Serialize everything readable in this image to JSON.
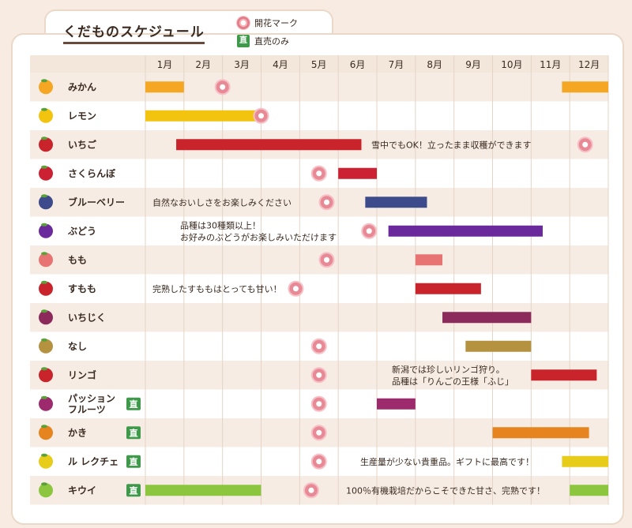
{
  "header": {
    "title": "くだものスケジュール"
  },
  "legend": {
    "flower_label": "開花マーク",
    "direct_label": "直売のみ",
    "direct_badge": "直"
  },
  "chart_data": {
    "type": "gantt",
    "months": [
      "1月",
      "2月",
      "3月",
      "4月",
      "5月",
      "6月",
      "7月",
      "8月",
      "9月",
      "10月",
      "11月",
      "12月"
    ],
    "rows": [
      {
        "name": "みかん",
        "color": "#f5a623",
        "bars": [
          [
            1,
            2
          ],
          [
            11.8,
            13
          ]
        ],
        "bloom": 3,
        "direct": false,
        "note": []
      },
      {
        "name": "レモン",
        "color": "#f2c40f",
        "bars": [
          [
            1,
            4
          ]
        ],
        "bloom": 4,
        "direct": false,
        "note": []
      },
      {
        "name": "いちご",
        "color": "#c9232b",
        "bars": [
          [
            1.8,
            6.6
          ]
        ],
        "bloom": 12.4,
        "direct": false,
        "note": [
          "雪中でもOK！立ったまま収穫ができます"
        ]
      },
      {
        "name": "さくらんぼ",
        "color": "#cc2033",
        "bars": [
          [
            6,
            7
          ]
        ],
        "bloom": 5.5,
        "direct": false,
        "note": []
      },
      {
        "name": "ブルーベリー",
        "color": "#3d4a8c",
        "bars": [
          [
            6.7,
            8.3
          ]
        ],
        "bloom": 5.7,
        "direct": false,
        "note": [
          "自然なおいしさをお楽しみください"
        ]
      },
      {
        "name": "ぶどう",
        "color": "#6a2a9c",
        "bars": [
          [
            7.3,
            11.3
          ]
        ],
        "bloom": 6.8,
        "direct": false,
        "note": [
          "品種は30種類以上！",
          "お好みのぶどうがお楽しみいただけます"
        ]
      },
      {
        "name": "もも",
        "color": "#e87373",
        "bars": [
          [
            8,
            8.7
          ]
        ],
        "bloom": 5.7,
        "direct": false,
        "note": []
      },
      {
        "name": "すもも",
        "color": "#c9232b",
        "bars": [
          [
            8,
            9.7
          ]
        ],
        "bloom": 4.9,
        "direct": false,
        "note": [
          "完熟したすももはとっても甘い！"
        ]
      },
      {
        "name": "いちじく",
        "color": "#8c2a5c",
        "bars": [
          [
            8.7,
            11
          ]
        ],
        "bloom": null,
        "direct": false,
        "note": []
      },
      {
        "name": "なし",
        "color": "#b59240",
        "bars": [
          [
            9.3,
            11
          ]
        ],
        "bloom": 5.5,
        "direct": false,
        "note": []
      },
      {
        "name": "リンゴ",
        "color": "#c9232b",
        "bars": [
          [
            11,
            12.7
          ]
        ],
        "bloom": 5.5,
        "direct": false,
        "note": [
          "新潟では珍しいリンゴ狩り。",
          "品種は「りんごの王様「ふじ」"
        ]
      },
      {
        "name": "パッション\nフルーツ",
        "color": "#9c2a6c",
        "bars": [
          [
            7,
            8
          ]
        ],
        "bloom": 5.5,
        "direct": true,
        "note": []
      },
      {
        "name": "かき",
        "color": "#e6841f",
        "bars": [
          [
            10,
            12.5
          ]
        ],
        "bloom": 5.5,
        "direct": true,
        "note": []
      },
      {
        "name": "ル レクチェ",
        "color": "#e8cc1a",
        "bars": [
          [
            11.8,
            13
          ]
        ],
        "bloom": 5.5,
        "direct": true,
        "note": [
          "生産量が少ない貴重品。ギフトに最高です！"
        ]
      },
      {
        "name": "キウイ",
        "color": "#8cc63f",
        "bars": [
          [
            1,
            4
          ],
          [
            12,
            13
          ]
        ],
        "bloom": 5.3,
        "direct": true,
        "note": [
          "100％有機栽培だからこそできた甘さ、完熟です！"
        ]
      }
    ]
  }
}
